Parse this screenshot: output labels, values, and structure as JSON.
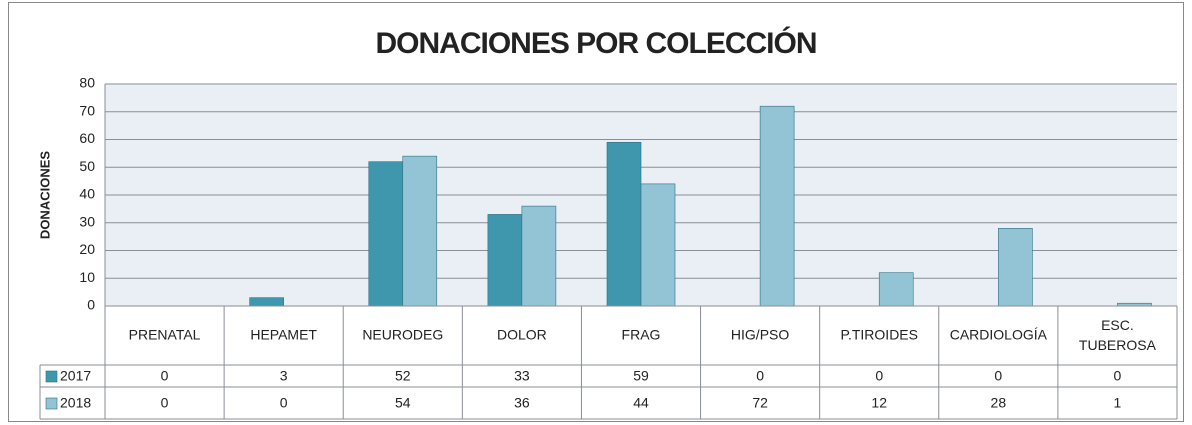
{
  "chart_data": {
    "type": "bar",
    "title": "DONACIONES POR COLECCIÓN",
    "y_label": "DONACIONES",
    "categories": [
      "PRENATAL",
      "HEPAMET",
      "NEURODEG",
      "DOLOR",
      "FRAG",
      "HIG/PSO",
      "P.TIROIDES",
      "CARDIOLOGÍA",
      "ESC. TUBEROSA"
    ],
    "series": [
      {
        "name": "2017",
        "color": "#3f97ae",
        "values": [
          0,
          3,
          52,
          33,
          59,
          0,
          0,
          0,
          0
        ]
      },
      {
        "name": "2018",
        "color": "#93c4d6",
        "values": [
          0,
          0,
          54,
          36,
          44,
          72,
          12,
          28,
          1
        ]
      }
    ],
    "ylim": [
      0,
      80
    ],
    "yticks": [
      0,
      10,
      20,
      30,
      40,
      50,
      60,
      70,
      80
    ],
    "grid": true,
    "data_table": true
  }
}
